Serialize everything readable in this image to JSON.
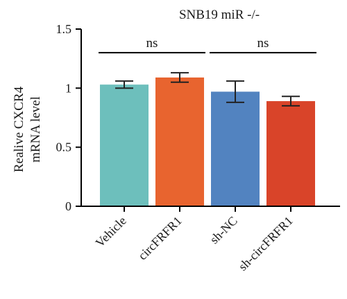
{
  "chart_data": {
    "type": "bar",
    "title": "SNB19 miR -/-",
    "ylabel_lines": [
      "Realive CXCR4",
      "mRNA level"
    ],
    "xlabel": "",
    "ylim": [
      0,
      1.5
    ],
    "yticks": [
      0,
      0.5,
      1,
      1.5
    ],
    "ytick_labels": [
      "0",
      "0.5",
      "1",
      "1.5"
    ],
    "categories": [
      "Vehicle",
      "circFRFR1",
      "sh-NC",
      "sh-circFRFR1"
    ],
    "values": [
      1.03,
      1.09,
      0.97,
      0.89
    ],
    "errors": [
      0.03,
      0.04,
      0.09,
      0.04
    ],
    "colors": [
      "#6dbfbc",
      "#e8642f",
      "#5283c0",
      "#d94429"
    ],
    "significance": [
      {
        "from": 0,
        "to": 1,
        "label": "ns",
        "y": 1.3
      },
      {
        "from": 2,
        "to": 3,
        "label": "ns",
        "y": 1.3
      }
    ],
    "legend": "none",
    "grid": false
  }
}
